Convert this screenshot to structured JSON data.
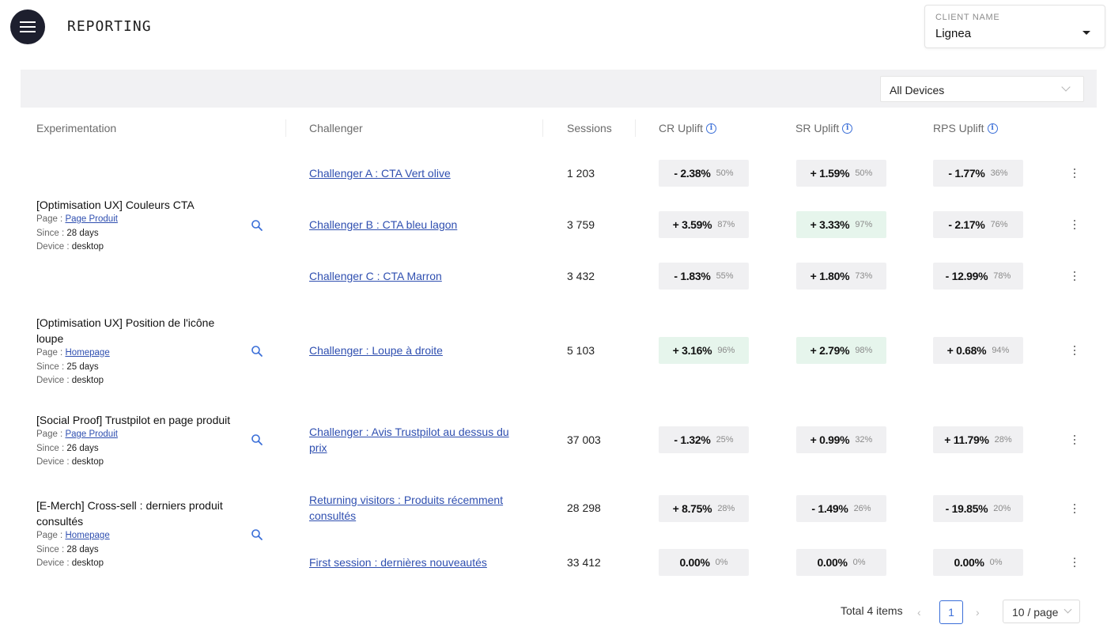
{
  "header": {
    "title": "REPORTING"
  },
  "client_select": {
    "label": "CLIENT NAME",
    "value": "Lignea"
  },
  "filters": {
    "device": "All Devices"
  },
  "columns": {
    "experimentation": "Experimentation",
    "challenger": "Challenger",
    "sessions": "Sessions",
    "cr_uplift": "CR Uplift",
    "sr_uplift": "SR Uplift",
    "rps_uplift": "RPS Uplift"
  },
  "labels": {
    "page": "Page : ",
    "since": "Since : ",
    "device": "Device : "
  },
  "experiments": [
    {
      "title": "[Optimisation UX] Couleurs CTA",
      "page": "Page Produit",
      "since": "28 days",
      "device": "desktop"
    },
    {
      "title": "[Optimisation UX] Position de l'icône loupe",
      "page": "Homepage",
      "since": "25 days",
      "device": "desktop"
    },
    {
      "title": "[Social Proof] Trustpilot en page produit",
      "page": "Page Produit",
      "since": "26 days",
      "device": "desktop"
    },
    {
      "title": "[E-Merch] Cross-sell : derniers produit consultés",
      "page": "Homepage",
      "since": "28 days",
      "device": "desktop"
    }
  ],
  "rows": [
    {
      "challenger": "Challenger A : CTA Vert olive",
      "sessions": "1 203",
      "cr": {
        "value": "- 2.38%",
        "conf": "50%",
        "positive": false
      },
      "sr": {
        "value": "+ 1.59%",
        "conf": "50%",
        "positive": false
      },
      "rps": {
        "value": "- 1.77%",
        "conf": "36%",
        "positive": false
      }
    },
    {
      "challenger": "Challenger B : CTA bleu lagon",
      "sessions": "3 759",
      "cr": {
        "value": "+ 3.59%",
        "conf": "87%",
        "positive": false
      },
      "sr": {
        "value": "+ 3.33%",
        "conf": "97%",
        "positive": true
      },
      "rps": {
        "value": "- 2.17%",
        "conf": "76%",
        "positive": false
      }
    },
    {
      "challenger": "Challenger C : CTA Marron",
      "sessions": "3 432",
      "cr": {
        "value": "- 1.83%",
        "conf": "55%",
        "positive": false
      },
      "sr": {
        "value": "+ 1.80%",
        "conf": "73%",
        "positive": false
      },
      "rps": {
        "value": "- 12.99%",
        "conf": "78%",
        "positive": false
      }
    },
    {
      "challenger": "Challenger : Loupe à droite",
      "sessions": "5 103",
      "cr": {
        "value": "+ 3.16%",
        "conf": "96%",
        "positive": true
      },
      "sr": {
        "value": "+ 2.79%",
        "conf": "98%",
        "positive": true
      },
      "rps": {
        "value": "+ 0.68%",
        "conf": "94%",
        "positive": false
      }
    },
    {
      "challenger": "Challenger : Avis Trustpilot au dessus du prix",
      "sessions": "37 003",
      "cr": {
        "value": "- 1.32%",
        "conf": "25%",
        "positive": false
      },
      "sr": {
        "value": "+ 0.99%",
        "conf": "32%",
        "positive": false
      },
      "rps": {
        "value": "+ 11.79%",
        "conf": "28%",
        "positive": false
      }
    },
    {
      "challenger": "Returning visitors : Produits récemment consultés",
      "sessions": "28 298",
      "cr": {
        "value": "+ 8.75%",
        "conf": "28%",
        "positive": false
      },
      "sr": {
        "value": "- 1.49%",
        "conf": "26%",
        "positive": false
      },
      "rps": {
        "value": "- 19.85%",
        "conf": "20%",
        "positive": false
      }
    },
    {
      "challenger": "First session : dernières nouveautés",
      "sessions": "33 412",
      "cr": {
        "value": "0.00%",
        "conf": "0%",
        "positive": false
      },
      "sr": {
        "value": "0.00%",
        "conf": "0%",
        "positive": false
      },
      "rps": {
        "value": "0.00%",
        "conf": "0%",
        "positive": false
      }
    }
  ],
  "pagination": {
    "total": "Total 4 items",
    "current": "1",
    "page_size": "10 / page"
  },
  "colors": {
    "accent": "#3b6fd8",
    "link": "#2f4fb0",
    "positive_bg": "#e6f5ec",
    "neutral_bg": "#f0f0f2",
    "menu_bg": "#1d1f2e"
  }
}
